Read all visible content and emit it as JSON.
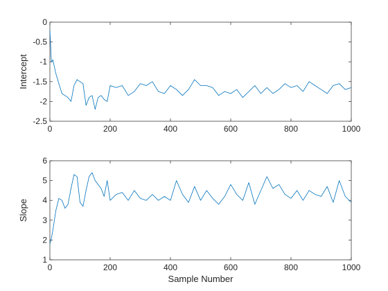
{
  "chart_data": [
    {
      "type": "line",
      "xlabel": "",
      "ylabel": "Intercept",
      "xlim": [
        0,
        1000
      ],
      "ylim": [
        -2.5,
        0
      ],
      "xticks": [
        "0",
        "200",
        "400",
        "600",
        "800",
        "1000"
      ],
      "yticks": [
        "0",
        "-0.5",
        "-1",
        "-1.5",
        "-2",
        "-2.5"
      ],
      "grid": false,
      "color": "#0072bd",
      "series": [
        {
          "x": [
            0,
            5,
            10,
            20,
            30,
            40,
            50,
            60,
            70,
            80,
            90,
            100,
            110,
            120,
            130,
            140,
            150,
            160,
            170,
            180,
            190,
            200,
            220,
            240,
            260,
            280,
            300,
            320,
            340,
            360,
            380,
            400,
            420,
            440,
            460,
            480,
            500,
            520,
            540,
            560,
            580,
            600,
            620,
            640,
            660,
            680,
            700,
            720,
            740,
            760,
            780,
            800,
            820,
            840,
            860,
            880,
            900,
            920,
            940,
            960,
            980,
            1000
          ],
          "values": [
            -0.2,
            -1.0,
            -0.95,
            -1.3,
            -1.55,
            -1.8,
            -1.85,
            -1.9,
            -2.0,
            -1.6,
            -1.45,
            -1.5,
            -1.55,
            -2.1,
            -1.9,
            -1.85,
            -2.2,
            -1.9,
            -1.85,
            -1.95,
            -2.0,
            -1.6,
            -1.65,
            -1.6,
            -1.85,
            -1.75,
            -1.55,
            -1.6,
            -1.5,
            -1.75,
            -1.8,
            -1.6,
            -1.7,
            -1.85,
            -1.7,
            -1.45,
            -1.6,
            -1.6,
            -1.65,
            -1.85,
            -1.75,
            -1.8,
            -1.7,
            -1.9,
            -1.75,
            -1.6,
            -1.8,
            -1.65,
            -1.8,
            -1.7,
            -1.55,
            -1.65,
            -1.6,
            -1.75,
            -1.5,
            -1.6,
            -1.7,
            -1.8,
            -1.6,
            -1.55,
            -1.7,
            -1.65
          ]
        }
      ]
    },
    {
      "type": "line",
      "xlabel": "Sample Number",
      "ylabel": "Slope",
      "xlim": [
        0,
        1000
      ],
      "ylim": [
        1,
        6
      ],
      "xticks": [
        "0",
        "200",
        "400",
        "600",
        "800",
        "1000"
      ],
      "yticks": [
        "6",
        "5",
        "4",
        "3",
        "2",
        "1"
      ],
      "grid": false,
      "color": "#0072bd",
      "series": [
        {
          "x": [
            0,
            5,
            10,
            20,
            30,
            40,
            50,
            60,
            70,
            80,
            90,
            100,
            110,
            120,
            130,
            140,
            150,
            160,
            170,
            180,
            190,
            200,
            220,
            240,
            260,
            280,
            300,
            320,
            340,
            360,
            380,
            400,
            420,
            440,
            460,
            480,
            500,
            520,
            540,
            560,
            580,
            600,
            620,
            640,
            660,
            680,
            700,
            720,
            740,
            760,
            780,
            800,
            820,
            840,
            860,
            880,
            900,
            920,
            940,
            960,
            980,
            1000
          ],
          "values": [
            1.8,
            2.1,
            2.5,
            3.5,
            4.1,
            4.0,
            3.6,
            3.8,
            4.6,
            5.3,
            5.2,
            3.9,
            3.7,
            4.5,
            5.2,
            5.4,
            5.0,
            4.8,
            4.6,
            4.2,
            5.0,
            4.0,
            4.3,
            4.4,
            4.0,
            4.5,
            4.1,
            4.0,
            4.3,
            4.0,
            4.2,
            4.0,
            5.0,
            4.3,
            3.9,
            4.7,
            4.0,
            4.5,
            4.1,
            3.8,
            4.2,
            4.8,
            4.3,
            4.0,
            4.9,
            3.8,
            4.5,
            5.2,
            4.6,
            4.8,
            4.3,
            4.1,
            4.5,
            4.0,
            4.5,
            4.3,
            4.2,
            4.7,
            3.9,
            5.0,
            4.2,
            3.9
          ]
        }
      ]
    }
  ]
}
